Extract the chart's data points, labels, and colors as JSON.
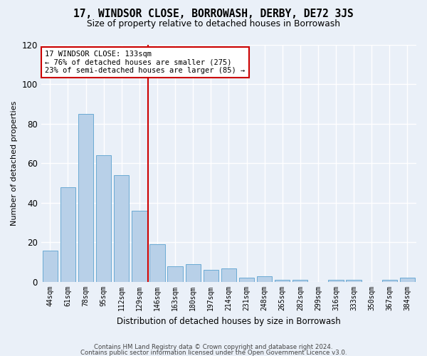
{
  "title": "17, WINDSOR CLOSE, BORROWASH, DERBY, DE72 3JS",
  "subtitle": "Size of property relative to detached houses in Borrowash",
  "xlabel": "Distribution of detached houses by size in Borrowash",
  "ylabel": "Number of detached properties",
  "categories": [
    "44sqm",
    "61sqm",
    "78sqm",
    "95sqm",
    "112sqm",
    "129sqm",
    "146sqm",
    "163sqm",
    "180sqm",
    "197sqm",
    "214sqm",
    "231sqm",
    "248sqm",
    "265sqm",
    "282sqm",
    "299sqm",
    "316sqm",
    "333sqm",
    "350sqm",
    "367sqm",
    "384sqm"
  ],
  "values": [
    16,
    48,
    85,
    64,
    54,
    36,
    19,
    8,
    9,
    6,
    7,
    2,
    3,
    1,
    1,
    0,
    1,
    1,
    0,
    1,
    2
  ],
  "bar_color": "#b8d0e8",
  "bar_edge_color": "#6aaad4",
  "vline_index": 5.5,
  "vline_color": "#cc0000",
  "annotation_line1": "17 WINDSOR CLOSE: 133sqm",
  "annotation_line2": "← 76% of detached houses are smaller (275)",
  "annotation_line3": "23% of semi-detached houses are larger (85) →",
  "annotation_box_color": "#ffffff",
  "annotation_box_edge": "#cc0000",
  "ylim": [
    0,
    120
  ],
  "yticks": [
    0,
    20,
    40,
    60,
    80,
    100,
    120
  ],
  "bg_color": "#eaf0f8",
  "grid_color": "#ffffff",
  "footer_line1": "Contains HM Land Registry data © Crown copyright and database right 2024.",
  "footer_line2": "Contains public sector information licensed under the Open Government Licence v3.0."
}
